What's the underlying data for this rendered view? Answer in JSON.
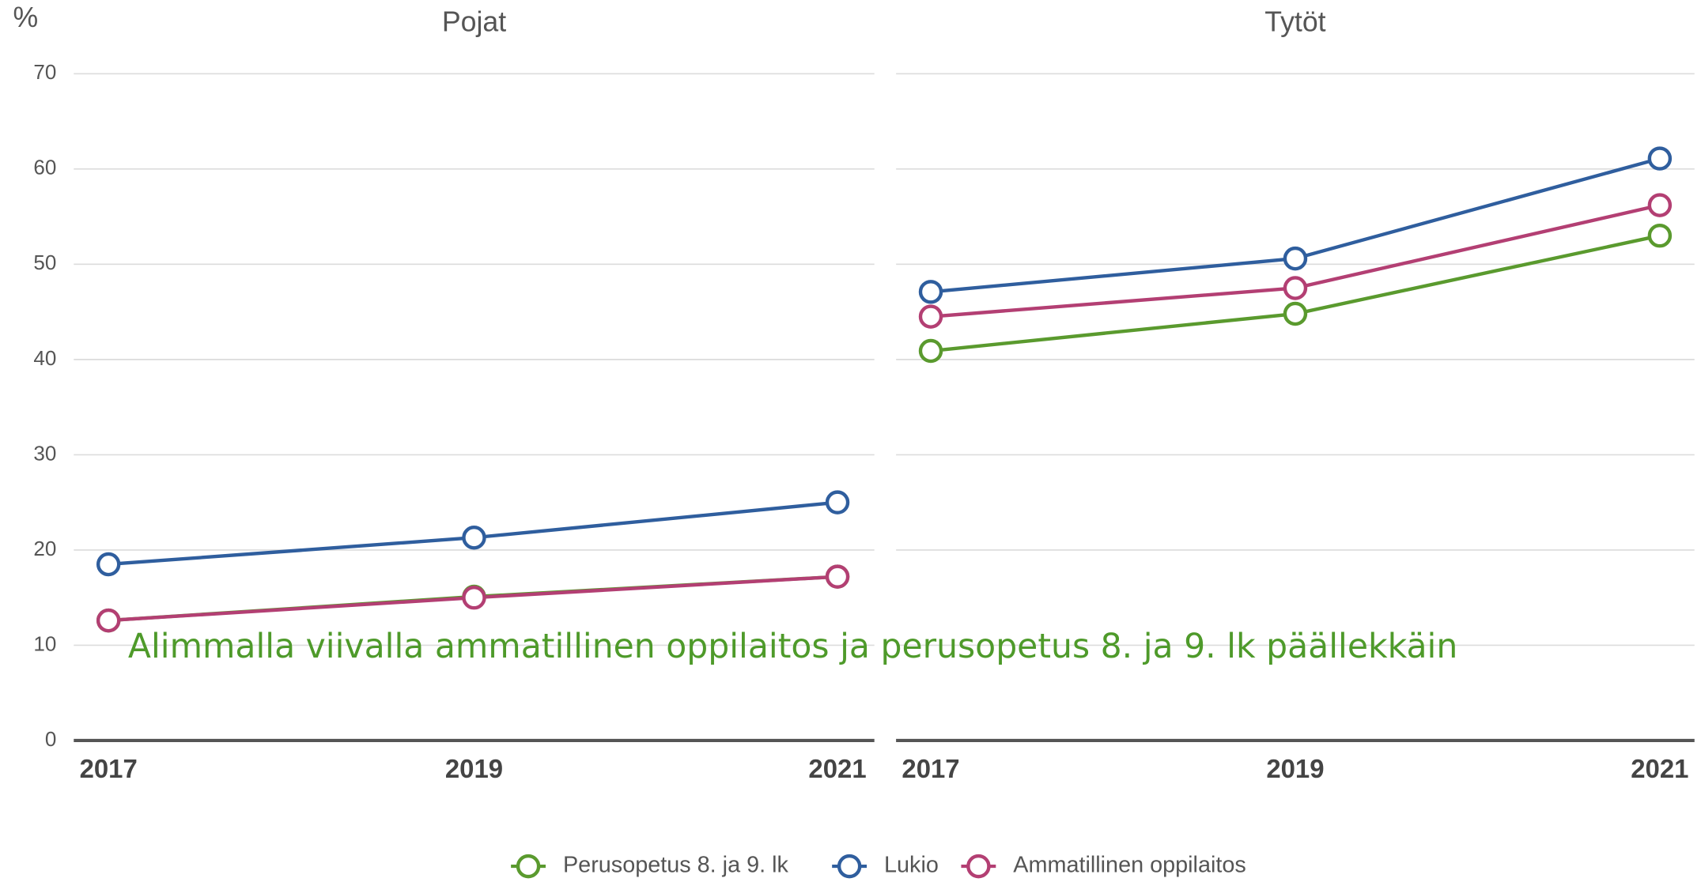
{
  "chart_data": [
    {
      "type": "line",
      "title": "Pojat",
      "y_label": "%",
      "categories": [
        "2017",
        "2019",
        "2021"
      ],
      "series": [
        {
          "name": "Perusopetus 8. ja 9. lk",
          "color": "#5a9a2e",
          "values": [
            12.6,
            15.1,
            17.2
          ]
        },
        {
          "name": "Lukio",
          "color": "#2f5e9e",
          "values": [
            18.5,
            21.3,
            25.0
          ]
        },
        {
          "name": "Ammatillinen oppilaitos",
          "color": "#b33f73",
          "values": [
            12.6,
            15.0,
            17.2
          ]
        }
      ],
      "ylim": [
        0,
        70
      ],
      "yticks": [
        0,
        10,
        20,
        30,
        40,
        50,
        60,
        70
      ],
      "grid": true
    },
    {
      "type": "line",
      "title": "Tytöt",
      "categories": [
        "2017",
        "2019",
        "2021"
      ],
      "series": [
        {
          "name": "Perusopetus 8. ja 9. lk",
          "color": "#5a9a2e",
          "values": [
            40.9,
            44.8,
            53.0
          ]
        },
        {
          "name": "Lukio",
          "color": "#2f5e9e",
          "values": [
            47.1,
            50.6,
            61.1
          ]
        },
        {
          "name": "Ammatillinen oppilaitos",
          "color": "#b33f73",
          "values": [
            44.5,
            47.5,
            56.2
          ]
        }
      ],
      "ylim": [
        0,
        70
      ],
      "yticks": [
        0,
        10,
        20,
        30,
        40,
        50,
        60,
        70
      ],
      "grid": true
    }
  ],
  "annotation": "Alimmalla viivalla ammatillinen oppilaitos ja perusopetus 8. ja 9. lk päällekkäin"
}
